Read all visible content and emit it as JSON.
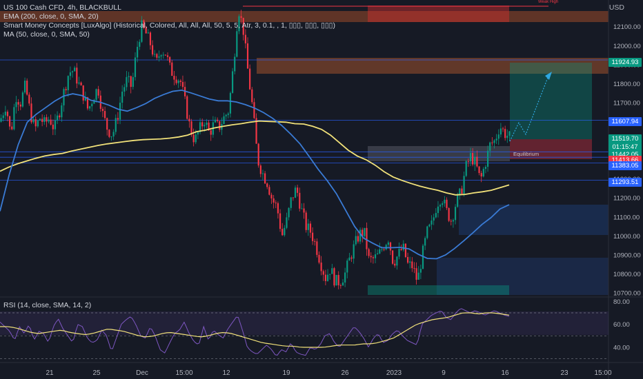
{
  "legend": {
    "title": "US 100 Cash CFD, 4h, BLACKBULL",
    "ema": "EMA (200, close, 0, SMA, 20)",
    "smc": "Smart Money Concepts [LuxAlgo] (Historical, Colored, All, All, All, 50, 5, 5, Atr, 3, 0.1, , 1, ▯▯▯, ▯▯▯, ▯▯▯)",
    "ma": "MA (50, close, 0, SMA, 50)"
  },
  "rsi_legend": "RSI (14, close, SMA, 14, 2)",
  "unit": "USD",
  "zone_label": "Equilibrium",
  "annotation": "Weak High",
  "badges": {
    "p1": "11924.93",
    "p2": "11607.94",
    "p3_price": "11519.70",
    "p3_time": "01:15:47",
    "p4": "11442.05",
    "p5": "11413.66",
    "p6": "11383.05",
    "p7": "11293.51"
  },
  "colors": {
    "background": "#161a25",
    "up": "#089981",
    "down": "#f23645",
    "ema": "#f2e27a",
    "ma": "#3a7bd5",
    "rsi": "#7e57c2",
    "level_line": "#2962ff"
  },
  "chart_data": [
    {
      "type": "candlestick",
      "title": "US 100 Cash CFD, 4h, BLACKBULL",
      "ylabel": "USD",
      "y_ticks": [
        12100,
        12000,
        11900,
        11800,
        11700,
        11600,
        11500,
        11400,
        11300,
        11200,
        11100,
        11000,
        10900,
        10800,
        10700
      ],
      "y_tick_labels": [
        "12100.00",
        "12000.00",
        "11900.00",
        "11800.00",
        "11700.00",
        "11600.00",
        "11500.00",
        "11400.00",
        "11300.00",
        "11200.00",
        "11100.00",
        "11000.00",
        "10900.00",
        "10800.00",
        "10700.00"
      ],
      "ylim": [
        10690,
        12240
      ],
      "x_tick_labels": [
        "21",
        "25",
        "Dec",
        "15:00",
        "12",
        "19",
        "26",
        "2023",
        "9",
        "16",
        "23",
        "15:00"
      ],
      "grid": false,
      "close_path": [
        11620,
        11690,
        11530,
        11740,
        11700,
        11790,
        11650,
        11560,
        11620,
        11590,
        11620,
        11560,
        11650,
        11760,
        11860,
        11870,
        11800,
        11740,
        11660,
        11730,
        11780,
        11640,
        11560,
        11530,
        11620,
        11760,
        11820,
        11780,
        11980,
        12100,
        12060,
        12000,
        11900,
        11980,
        11960,
        11870,
        11840,
        11820,
        11700,
        11570,
        11500,
        11560,
        11610,
        11540,
        11590,
        11570,
        11620,
        11660,
        11900,
        12200,
        12090,
        11860,
        11660,
        11400,
        11330,
        11280,
        11190,
        11150,
        11000,
        11080,
        11200,
        11250,
        11140,
        11050,
        11020,
        10950,
        10860,
        10780,
        10830,
        10760,
        10760,
        10800,
        10880,
        10950,
        11010,
        11020,
        10870,
        10880,
        10900,
        10950,
        10990,
        10860,
        10900,
        10940,
        10850,
        10840,
        10760,
        10900,
        11020,
        11060,
        11170,
        11210,
        11130,
        11080,
        11180,
        11230,
        11360,
        11420,
        11380,
        11290,
        11380,
        11480,
        11500,
        11580,
        11540,
        11520
      ],
      "series": [
        {
          "name": "EMA (200, close, 0, SMA, 20)",
          "values": [
            11340,
            11362,
            11380,
            11394,
            11408,
            11420,
            11428,
            11434,
            11446,
            11456,
            11466,
            11476,
            11484,
            11490,
            11496,
            11502,
            11506,
            11508,
            11510,
            11514,
            11520,
            11530,
            11548,
            11556,
            11568,
            11576,
            11584,
            11590,
            11598,
            11604,
            11602,
            11600,
            11598,
            11590,
            11588,
            11576,
            11560,
            11530,
            11490,
            11450,
            11420,
            11400,
            11372,
            11338,
            11310,
            11292,
            11276,
            11262,
            11250,
            11240,
            11226,
            11216,
            11218,
            11226,
            11232,
            11240,
            11254,
            11268
          ]
        },
        {
          "name": "MA (50, close, 0, SMA, 50)",
          "values": [
            11130,
            11320,
            11480,
            11598,
            11640,
            11674,
            11708,
            11735,
            11747,
            11738,
            11713,
            11703,
            11687,
            11666,
            11656,
            11674,
            11695,
            11723,
            11743,
            11760,
            11766,
            11752,
            11736,
            11720,
            11710,
            11710,
            11704,
            11690,
            11672,
            11648,
            11618,
            11580,
            11534,
            11484,
            11418,
            11350,
            11290,
            11222,
            11136,
            11050,
            10988,
            10962,
            10938,
            10938,
            10940,
            10932,
            10904,
            10882,
            10880,
            10900,
            10934,
            10974,
            11016,
            11060,
            11096,
            11142,
            11164
          ]
        }
      ],
      "levels": [
        11924.93,
        11607.94,
        11442.05,
        11413.66,
        11383.05,
        11293.51
      ],
      "annotations": [
        "Weak High",
        "Equilibrium"
      ]
    },
    {
      "type": "line",
      "title": "RSI (14, close, SMA, 14, 2)",
      "y_ticks": [
        80,
        60,
        40
      ],
      "y_tick_labels": [
        "80.00",
        "60.00",
        "40.00"
      ],
      "ylim": [
        28,
        82
      ],
      "bands": [
        70,
        50,
        30
      ],
      "series": [
        {
          "name": "RSI",
          "values": [
            62,
            58,
            54,
            46,
            58,
            52,
            60,
            46,
            54,
            52,
            44,
            58,
            65,
            56,
            50,
            44,
            60,
            58,
            48,
            44,
            46,
            55,
            50,
            36,
            48,
            60,
            64,
            67,
            60,
            50,
            48,
            58,
            50,
            38,
            35,
            44,
            52,
            55,
            62,
            52,
            45,
            42,
            58,
            46,
            55,
            51,
            48,
            56,
            62,
            68,
            55,
            40,
            36,
            34,
            38,
            42,
            38,
            32,
            38,
            36,
            44,
            36,
            34,
            33,
            40,
            38,
            42,
            50,
            52,
            44,
            40,
            46,
            52,
            58,
            54,
            48,
            40,
            48,
            52,
            44,
            46,
            52,
            55,
            50,
            46,
            44,
            42,
            60,
            64,
            68,
            70,
            72,
            66,
            64,
            70,
            74,
            72,
            70,
            72,
            70,
            68,
            70,
            72,
            70,
            68,
            67
          ]
        },
        {
          "name": "RSI-based MA",
          "values": [
            58,
            58,
            57,
            55,
            53,
            52,
            53,
            54,
            55,
            53,
            52,
            51,
            52,
            54,
            56,
            55,
            54,
            52,
            50,
            49,
            50,
            52,
            53,
            52,
            51,
            50,
            49,
            50,
            52,
            53,
            52,
            50,
            48,
            46,
            44,
            43,
            42,
            41,
            41,
            40,
            40,
            40,
            40,
            41,
            42,
            42,
            42,
            43,
            43,
            44,
            46,
            48,
            52,
            56,
            60,
            62,
            64,
            65,
            66,
            68,
            70,
            70,
            69,
            70,
            70,
            69,
            68
          ]
        }
      ]
    }
  ]
}
